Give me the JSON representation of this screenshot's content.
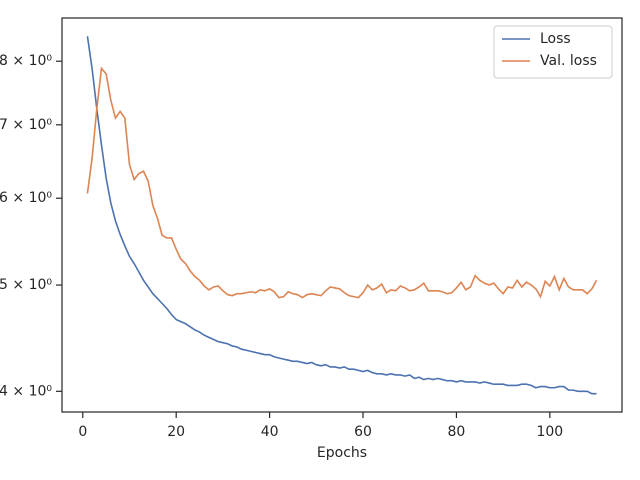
{
  "chart_data": {
    "type": "line",
    "xlabel": "Epochs",
    "x": [
      1,
      2,
      3,
      4,
      5,
      6,
      7,
      8,
      9,
      10,
      11,
      12,
      13,
      14,
      15,
      16,
      17,
      18,
      19,
      20,
      21,
      22,
      23,
      24,
      25,
      26,
      27,
      28,
      29,
      30,
      31,
      32,
      33,
      34,
      35,
      36,
      37,
      38,
      39,
      40,
      41,
      42,
      43,
      44,
      45,
      46,
      47,
      48,
      49,
      50,
      51,
      52,
      53,
      54,
      55,
      56,
      57,
      58,
      59,
      60,
      61,
      62,
      63,
      64,
      65,
      66,
      67,
      68,
      69,
      70,
      71,
      72,
      73,
      74,
      75,
      76,
      77,
      78,
      79,
      80,
      81,
      82,
      83,
      84,
      85,
      86,
      87,
      88,
      89,
      90,
      91,
      92,
      93,
      94,
      95,
      96,
      97,
      98,
      99,
      100,
      101,
      102,
      103,
      104,
      105,
      106,
      107,
      108,
      109,
      110
    ],
    "series": [
      {
        "name": "Loss",
        "color": "#4c72b0",
        "values": [
          8.43,
          7.87,
          7.24,
          6.71,
          6.26,
          5.94,
          5.72,
          5.56,
          5.43,
          5.31,
          5.23,
          5.14,
          5.05,
          4.98,
          4.91,
          4.86,
          4.81,
          4.76,
          4.7,
          4.65,
          4.63,
          4.61,
          4.58,
          4.55,
          4.53,
          4.5,
          4.48,
          4.46,
          4.44,
          4.43,
          4.42,
          4.4,
          4.39,
          4.37,
          4.36,
          4.35,
          4.34,
          4.33,
          4.32,
          4.32,
          4.3,
          4.29,
          4.28,
          4.27,
          4.26,
          4.26,
          4.25,
          4.24,
          4.25,
          4.23,
          4.22,
          4.23,
          4.21,
          4.21,
          4.2,
          4.21,
          4.19,
          4.19,
          4.18,
          4.17,
          4.18,
          4.16,
          4.15,
          4.15,
          4.14,
          4.15,
          4.14,
          4.14,
          4.13,
          4.14,
          4.11,
          4.12,
          4.1,
          4.11,
          4.1,
          4.11,
          4.1,
          4.09,
          4.09,
          4.08,
          4.09,
          4.08,
          4.08,
          4.08,
          4.07,
          4.08,
          4.07,
          4.06,
          4.06,
          4.06,
          4.05,
          4.05,
          4.05,
          4.06,
          4.06,
          4.05,
          4.03,
          4.04,
          4.04,
          4.03,
          4.03,
          4.04,
          4.04,
          4.01,
          4.01,
          4.0,
          4.0,
          4.0,
          3.98,
          3.98
        ]
      },
      {
        "name": "Val. loss",
        "color": "#dd8452",
        "values": [
          6.06,
          6.53,
          7.24,
          7.88,
          7.79,
          7.37,
          7.1,
          7.2,
          7.1,
          6.44,
          6.24,
          6.32,
          6.35,
          6.22,
          5.91,
          5.75,
          5.55,
          5.52,
          5.52,
          5.39,
          5.28,
          5.23,
          5.15,
          5.09,
          5.05,
          4.99,
          4.95,
          4.98,
          4.99,
          4.94,
          4.9,
          4.89,
          4.91,
          4.91,
          4.92,
          4.93,
          4.92,
          4.95,
          4.94,
          4.96,
          4.93,
          4.87,
          4.88,
          4.93,
          4.91,
          4.9,
          4.87,
          4.9,
          4.91,
          4.9,
          4.89,
          4.94,
          4.98,
          4.97,
          4.96,
          4.92,
          4.89,
          4.88,
          4.87,
          4.92,
          5.0,
          4.95,
          4.97,
          5.01,
          4.92,
          4.95,
          4.94,
          4.99,
          4.97,
          4.94,
          4.95,
          4.98,
          5.02,
          4.94,
          4.94,
          4.94,
          4.93,
          4.91,
          4.92,
          4.97,
          5.03,
          4.95,
          4.98,
          5.1,
          5.05,
          5.02,
          5.0,
          5.02,
          4.96,
          4.91,
          4.98,
          4.97,
          5.05,
          4.98,
          5.03,
          5.0,
          4.96,
          4.88,
          5.04,
          4.99,
          5.09,
          4.95,
          5.07,
          4.98,
          4.95,
          4.95,
          4.95,
          4.91,
          4.96,
          5.05
        ]
      }
    ],
    "xlim": [
      -4.45,
      115.45
    ],
    "xticks": [
      0,
      20,
      40,
      60,
      80,
      100
    ],
    "ylim": [
      3.83,
      8.76
    ],
    "yscale": "log",
    "yticks": [
      {
        "value": 4,
        "label": "4 × 10⁰"
      },
      {
        "value": 5,
        "label": "5 × 10⁰"
      },
      {
        "value": 6,
        "label": "6 × 10⁰"
      },
      {
        "value": 7,
        "label": "7 × 10⁰"
      },
      {
        "value": 8,
        "label": "8 × 10⁰"
      }
    ],
    "grid": false,
    "legend": "upper right"
  }
}
